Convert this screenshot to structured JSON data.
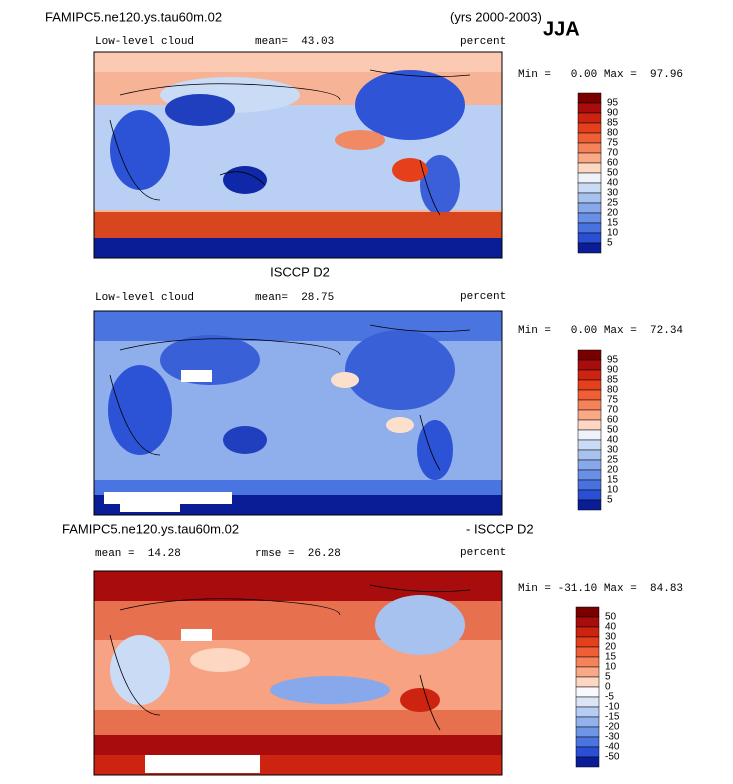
{
  "header": {
    "title": "FAMIPC5.ne120.ys.tau60m.02",
    "years": "(yrs 2000-2003)",
    "season": "JJA"
  },
  "panels": [
    {
      "variable": "Low-level cloud",
      "stat": "mean=  43.03",
      "units": "percent",
      "range": "Min =   0.00 Max =  97.96",
      "colorbar": {
        "labels": [
          95,
          90,
          85,
          80,
          75,
          70,
          60,
          50,
          40,
          30,
          25,
          20,
          15,
          10,
          5
        ],
        "colors": [
          "#7a0000",
          "#a80c0c",
          "#cc2410",
          "#e4401c",
          "#ef5e34",
          "#f6825a",
          "#faa987",
          "#fdd7c2",
          "#eef2fb",
          "#cadbf5",
          "#a8c2f0",
          "#87a9eb",
          "#6890e6",
          "#4872e0",
          "#2a4fd4",
          "#0b1d96"
        ]
      }
    },
    {
      "title": "ISCCP D2",
      "variable": "Low-level cloud",
      "stat": "mean=  28.75",
      "units": "percent",
      "range": "Min =   0.00 Max =  72.34",
      "colorbar": {
        "labels": [
          95,
          90,
          85,
          80,
          75,
          70,
          60,
          50,
          40,
          30,
          25,
          20,
          15,
          10,
          5
        ],
        "colors": [
          "#7a0000",
          "#a80c0c",
          "#cc2410",
          "#e4401c",
          "#ef5e34",
          "#f6825a",
          "#faa987",
          "#fdd7c2",
          "#eef2fb",
          "#cadbf5",
          "#a8c2f0",
          "#87a9eb",
          "#6890e6",
          "#4872e0",
          "#2a4fd4",
          "#0b1d96"
        ]
      }
    },
    {
      "title_left": "FAMIPC5.ne120.ys.tau60m.02",
      "title_right": "- ISCCP D2",
      "stat": "mean =  14.28",
      "stat2": "rmse =  26.28",
      "units": "percent",
      "range": "Min = -31.10 Max =  84.83",
      "colorbar": {
        "labels": [
          50,
          40,
          30,
          20,
          15,
          10,
          5,
          0,
          -5,
          -10,
          -15,
          -20,
          -30,
          -40,
          -50
        ],
        "colors": [
          "#7a0000",
          "#a80c0c",
          "#cc2410",
          "#e4401c",
          "#ef5e34",
          "#f6825a",
          "#faa987",
          "#fdd7c2",
          "#f8f9ff",
          "#dbe5f8",
          "#b6ccf2",
          "#93b1ec",
          "#6f95e7",
          "#4a74e0",
          "#2a4fd4",
          "#0b1d96"
        ]
      }
    }
  ]
}
